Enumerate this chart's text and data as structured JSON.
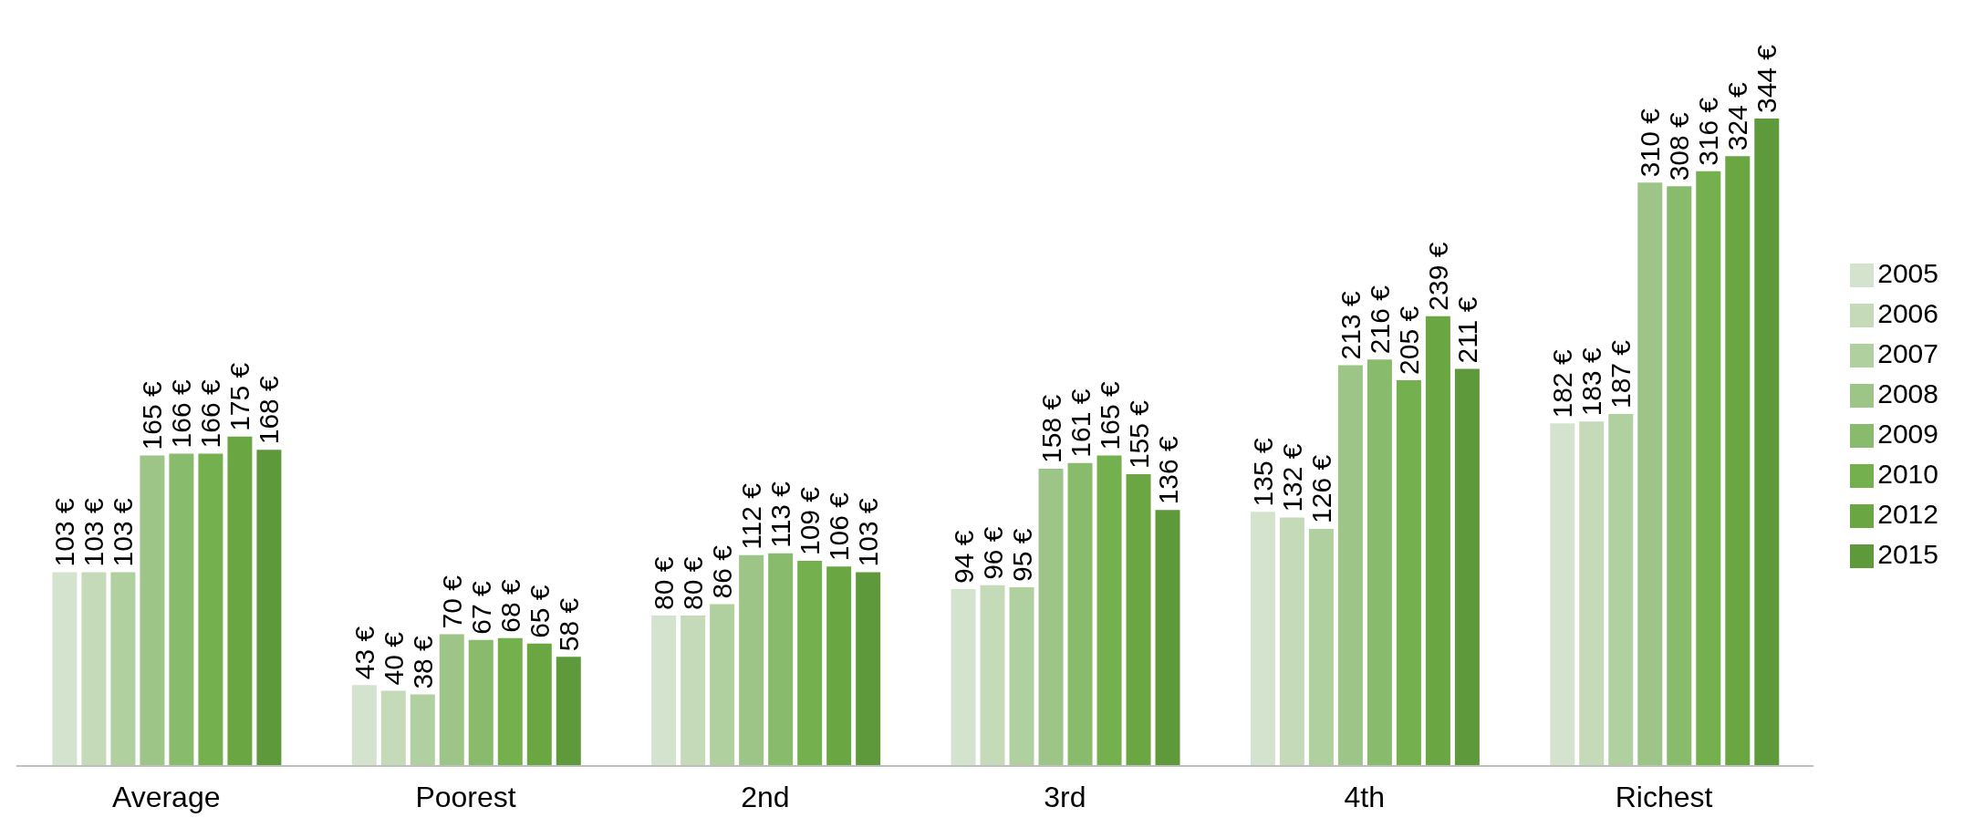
{
  "chart_data": {
    "type": "bar",
    "categories": [
      "Average",
      "Poorest",
      "2nd",
      "3rd",
      "4th",
      "Richest"
    ],
    "series": [
      {
        "name": "2005",
        "color": "#d4e3cd",
        "values": [
          103,
          43,
          80,
          94,
          135,
          182
        ],
        "value_labels": [
          "103 €",
          "43 €",
          "80 €",
          "94 €",
          "135 €",
          "182 €"
        ]
      },
      {
        "name": "2006",
        "color": "#c4dab8",
        "values": [
          103,
          40,
          80,
          96,
          132,
          183
        ],
        "value_labels": [
          "103 €",
          "40 €",
          "80 €",
          "96 €",
          "132 €",
          "183 €"
        ]
      },
      {
        "name": "2007",
        "color": "#b1d09f",
        "values": [
          103,
          38,
          86,
          95,
          126,
          187
        ],
        "value_labels": [
          "103 €",
          "38 €",
          "86 €",
          "95 €",
          "126 €",
          "187 €"
        ]
      },
      {
        "name": "2008",
        "color": "#9cc587",
        "values": [
          165,
          70,
          112,
          158,
          213,
          310
        ],
        "value_labels": [
          "165 €",
          "70 €",
          "112 €",
          "158 €",
          "213 €",
          "310 €"
        ]
      },
      {
        "name": "2009",
        "color": "#88bc6c",
        "values": [
          166,
          67,
          113,
          161,
          216,
          308
        ],
        "value_labels": [
          "166 €",
          "67 €",
          "113 €",
          "161 €",
          "216 €",
          "308 €"
        ]
      },
      {
        "name": "2010",
        "color": "#75b04f",
        "values": [
          166,
          68,
          109,
          165,
          205,
          316
        ],
        "value_labels": [
          "166 €",
          "68 €",
          "109 €",
          "165 €",
          "205 €",
          "316 €"
        ]
      },
      {
        "name": "2012",
        "color": "#6aa743",
        "values": [
          175,
          65,
          106,
          155,
          239,
          324
        ],
        "value_labels": [
          "175 €",
          "65 €",
          "106 €",
          "155 €",
          "239 €",
          "324 €"
        ]
      },
      {
        "name": "2015",
        "color": "#5e9a3b",
        "values": [
          168,
          58,
          103,
          136,
          211,
          344
        ],
        "value_labels": [
          "168 €",
          "58 €",
          "103 €",
          "136 €",
          "211 €",
          "344 €"
        ]
      }
    ],
    "legend": "right",
    "grid": false
  }
}
